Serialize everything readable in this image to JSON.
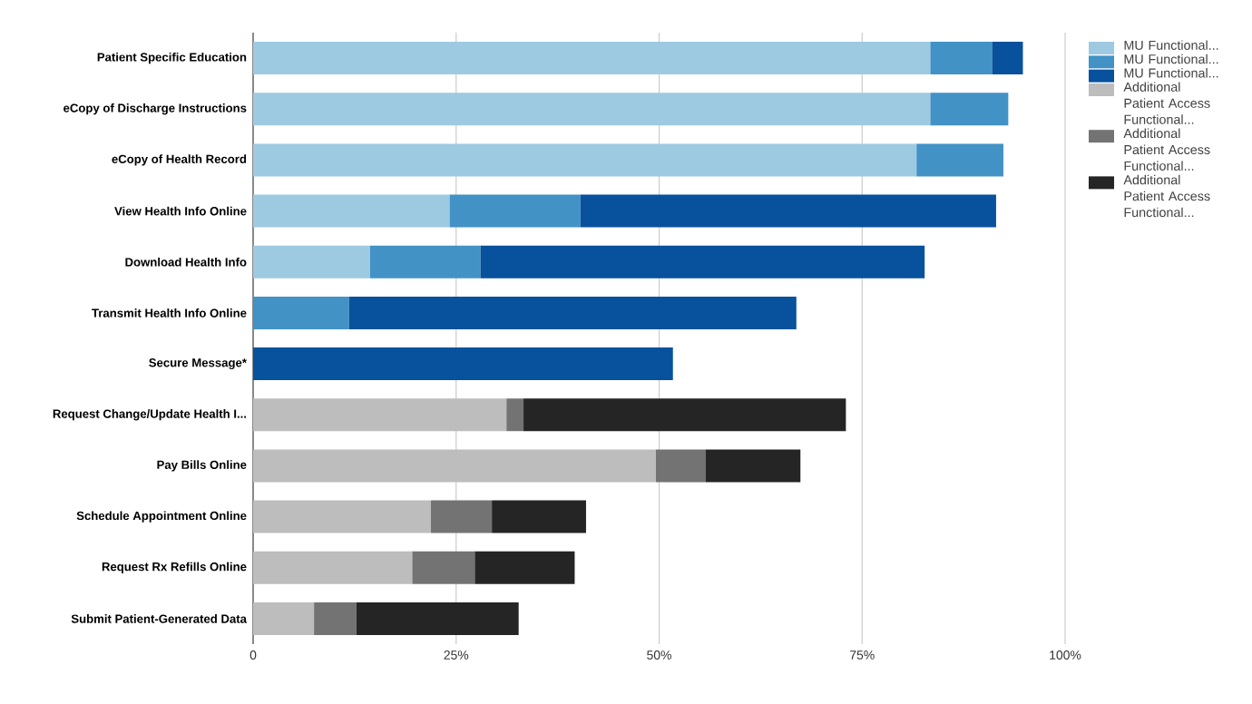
{
  "chart_data": {
    "type": "bar",
    "orientation": "horizontal",
    "stacked": true,
    "categories": [
      "Patient Specific Education",
      "eCopy of Discharge Instructions",
      "eCopy of Health Record",
      "View Health Info Online",
      "Download Health Info",
      "Transmit Health Info Online",
      "Secure Message*",
      "Request Change/Update Health I...",
      "Pay Bills Online",
      "Schedule Appointment Online",
      "Request Rx Refills Online",
      "Submit Patient-Generated Data"
    ],
    "series": [
      {
        "name": "MU Functional...",
        "color": "#9ecae1",
        "values": [
          83.4,
          83.4,
          81.7,
          24.2,
          14.4,
          null,
          null,
          null,
          null,
          null,
          null,
          null
        ]
      },
      {
        "name": "MU Functional...",
        "color": "#4292c6",
        "values": [
          7.6,
          9.6,
          10.7,
          16.1,
          13.6,
          11.8,
          null,
          null,
          null,
          null,
          null,
          null
        ]
      },
      {
        "name": "MU Functional...",
        "color": "#08519c",
        "values": [
          3.8,
          null,
          null,
          51.2,
          54.7,
          55.1,
          51.7,
          null,
          null,
          null,
          null,
          null
        ]
      },
      {
        "name": "Additional Patient Access Functional...",
        "color": "#bdbdbd",
        "values": [
          null,
          null,
          null,
          null,
          null,
          null,
          null,
          31.2,
          49.6,
          21.9,
          19.6,
          7.5
        ]
      },
      {
        "name": "Additional Patient Access Functional...",
        "color": "#737373",
        "values": [
          null,
          null,
          null,
          null,
          null,
          null,
          null,
          2.1,
          6.1,
          7.5,
          7.7,
          5.2
        ]
      },
      {
        "name": "Additional Patient Access Functional...",
        "color": "#252525",
        "values": [
          null,
          null,
          null,
          null,
          null,
          null,
          null,
          39.7,
          11.7,
          11.6,
          12.3,
          20.0
        ]
      }
    ],
    "xlim": [
      0,
      100
    ],
    "xticks": [
      0,
      {
        "value": 25,
        "label": "25%"
      },
      {
        "value": 50,
        "label": "50%"
      },
      {
        "value": 75,
        "label": "75%"
      },
      {
        "value": 100,
        "label": "100%"
      }
    ],
    "grid": "x",
    "legend": "right"
  }
}
